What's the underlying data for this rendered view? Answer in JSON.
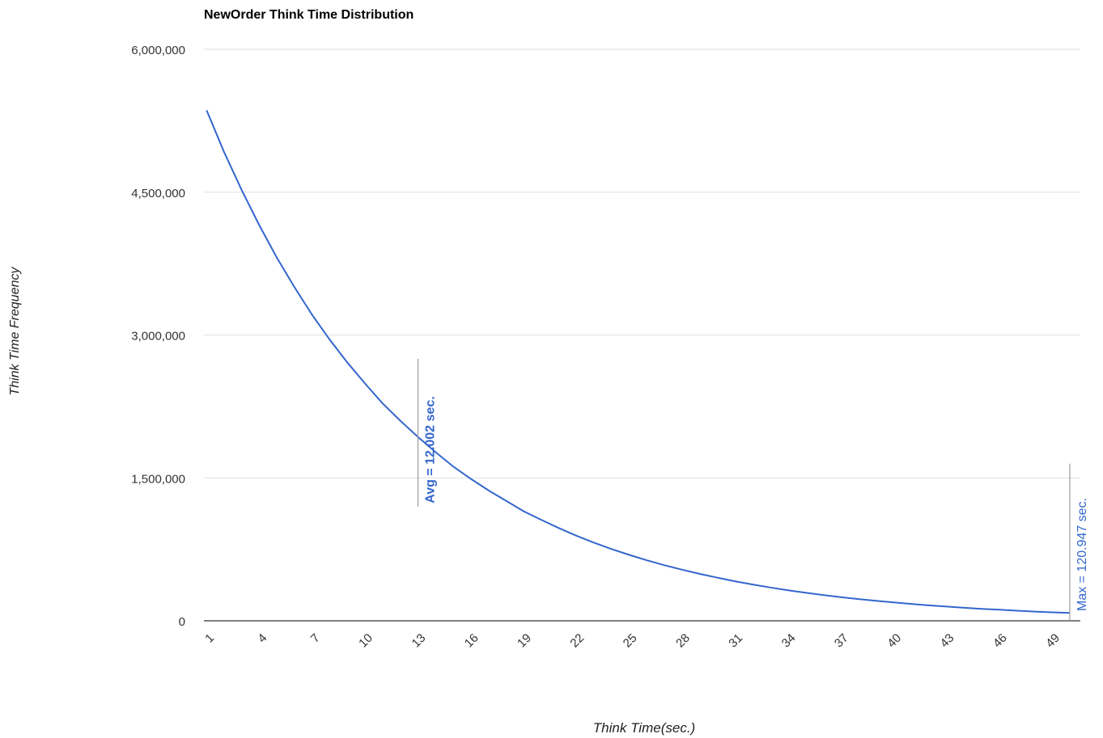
{
  "chart_data": {
    "type": "line",
    "title": "NewOrder Think Time Distribution",
    "xlabel": "Think Time(sec.)",
    "ylabel": "Think Time Frequency",
    "x": [
      1,
      2,
      3,
      4,
      5,
      6,
      7,
      8,
      9,
      10,
      11,
      12,
      13,
      14,
      15,
      16,
      17,
      18,
      19,
      20,
      21,
      22,
      23,
      24,
      25,
      26,
      27,
      28,
      29,
      30,
      31,
      32,
      33,
      34,
      35,
      36,
      37,
      38,
      39,
      40,
      41,
      42,
      43,
      44,
      45,
      46,
      47,
      48,
      49,
      50
    ],
    "x_tick_labels": [
      "1",
      "4",
      "7",
      "10",
      "13",
      "16",
      "19",
      "22",
      "25",
      "28",
      "31",
      "34",
      "37",
      "40",
      "43",
      "46",
      "49"
    ],
    "series": [
      {
        "color": "#3366cc",
        "values": [
          5360000,
          4920000,
          4520000,
          4150000,
          3810000,
          3500000,
          3210000,
          2950000,
          2710000,
          2490000,
          2280000,
          2100000,
          1930000,
          1770000,
          1620000,
          1490000,
          1370000,
          1260000,
          1150000,
          1060000,
          973000,
          893000,
          820000,
          753000,
          692000,
          635000,
          583000,
          536000,
          492000,
          452000,
          415000,
          381000,
          350000,
          321000,
          295000,
          271000,
          249000,
          228000,
          210000,
          193000,
          177000,
          162000,
          149000,
          137000,
          126000,
          116000,
          106000,
          97000,
          89000,
          82000
        ]
      }
    ],
    "y_tick_labels": [
      "0",
      "1,500,000",
      "3,000,000",
      "4,500,000",
      "6,000,000"
    ],
    "y_ticks": [
      0,
      1500000,
      3000000,
      4500000,
      6000000
    ],
    "ylim": [
      0,
      6000000
    ],
    "grid": true,
    "legend": "none",
    "annotations": [
      {
        "text": "Avg = 12.002 sec.",
        "x": 13,
        "y_range": [
          1200000,
          2750000
        ],
        "bold": true
      },
      {
        "text": "Max = 120.947 sec.",
        "x": 50,
        "y_range": [
          0,
          1650000
        ],
        "bold": false
      }
    ],
    "colors": {
      "line": "#3366cc",
      "annotation_text": "#3366cc",
      "grid": "#e6e6e6",
      "axis": "#333333",
      "annotation_line": "#999999"
    }
  }
}
